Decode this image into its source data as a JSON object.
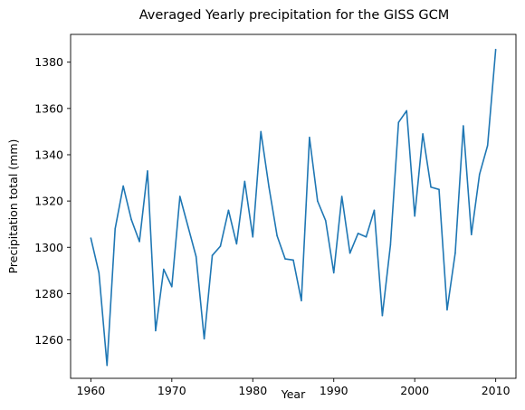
{
  "chart_data": {
    "type": "line",
    "title": "Averaged Yearly precipitation for the GISS GCM",
    "xlabel": "Year",
    "ylabel": "Precipitation total (mm)",
    "xlim": [
      1957.5,
      2012.5
    ],
    "ylim": [
      1243.4,
      1392.0
    ],
    "x_ticks": [
      1960,
      1970,
      1980,
      1990,
      2000,
      2010
    ],
    "y_ticks": [
      1260,
      1280,
      1300,
      1320,
      1340,
      1360,
      1380
    ],
    "grid": false,
    "series_color": "#1f77b4",
    "x": [
      1960,
      1961,
      1962,
      1963,
      1964,
      1965,
      1966,
      1967,
      1968,
      1969,
      1970,
      1971,
      1972,
      1973,
      1974,
      1975,
      1976,
      1977,
      1978,
      1979,
      1980,
      1981,
      1982,
      1983,
      1984,
      1985,
      1986,
      1987,
      1988,
      1989,
      1990,
      1991,
      1992,
      1993,
      1994,
      1995,
      1996,
      1997,
      1998,
      1999,
      2000,
      2001,
      2002,
      2003,
      2004,
      2005,
      2006,
      2007,
      2008,
      2009,
      2010
    ],
    "series": [
      {
        "values": [
          1304,
          1289,
          1249,
          1308,
          1326.5,
          1312,
          1302.5,
          1333,
          1264,
          1290.5,
          1283,
          1322,
          1309,
          1296,
          1260.5,
          1296.5,
          1300.5,
          1316,
          1301.5,
          1328.5,
          1304.5,
          1350,
          1326,
          1305,
          1295,
          1294.5,
          1277,
          1347.5,
          1320,
          1311.5,
          1289,
          1322,
          1297.5,
          1306,
          1304.5,
          1316,
          1270.5,
          1301,
          1354,
          1359,
          1313.5,
          1349,
          1326,
          1325,
          1273,
          1297.5,
          1352.5,
          1305.5,
          1331.5,
          1344,
          1385.5
        ]
      }
    ]
  }
}
